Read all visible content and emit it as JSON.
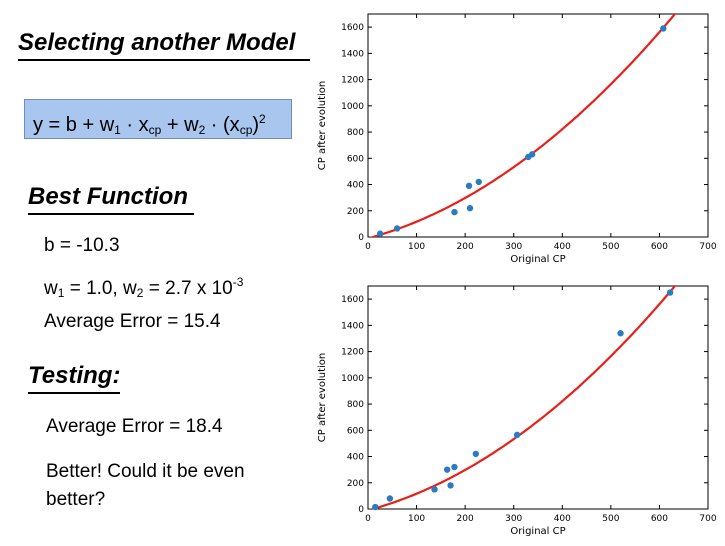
{
  "slide": {
    "title": "Selecting another Model",
    "formula": {
      "y": "y",
      "eq": " = b + w",
      "w1_sub": "1",
      "mid1": " · x",
      "cp1": "cp",
      "mid2": " + w",
      "w2_sub": "2",
      "mid3": " · (x",
      "cp2": "cp",
      "close": ")",
      "power": "2"
    },
    "best_heading": "Best Function",
    "b_line": "b = -10.3",
    "w_line": {
      "w1_prefix": "w",
      "w1_sub": "1",
      "w1_val": " = 1.0, w",
      "w2_sub": "2",
      "w2_val": " = 2.7 x 10",
      "exp": "-3"
    },
    "avg_error_train": "Average Error = 15.4",
    "testing_heading": "Testing:",
    "avg_error_test": "Average Error = 18.4",
    "better_text": "Better! Could it be even better?"
  },
  "colors": {
    "formula_box": "#a8c6ee",
    "point": "#2c7bc0",
    "curve": "#e8201a"
  },
  "chart_data": [
    {
      "type": "scatter",
      "xlabel": "Original CP",
      "ylabel": "CP after evolution",
      "xlim": [
        0,
        700
      ],
      "ylim": [
        0,
        1700
      ],
      "xticks": [
        0,
        100,
        200,
        300,
        400,
        500,
        600,
        700
      ],
      "yticks": [
        0,
        200,
        400,
        600,
        800,
        1000,
        1200,
        1400,
        1600
      ],
      "grid": false,
      "points": [
        [
          25,
          25
        ],
        [
          60,
          65
        ],
        [
          178,
          190
        ],
        [
          210,
          220
        ],
        [
          208,
          390
        ],
        [
          228,
          420
        ],
        [
          330,
          610
        ],
        [
          338,
          630
        ],
        [
          608,
          1590
        ]
      ],
      "model": {
        "b": -10.3,
        "w1": 1.0,
        "w2": 0.0027
      }
    },
    {
      "type": "scatter",
      "xlabel": "Original CP",
      "ylabel": "CP after evolution",
      "xlim": [
        0,
        700
      ],
      "ylim": [
        0,
        1700
      ],
      "xticks": [
        0,
        100,
        200,
        300,
        400,
        500,
        600,
        700
      ],
      "yticks": [
        0,
        200,
        400,
        600,
        800,
        1000,
        1200,
        1400,
        1600
      ],
      "grid": false,
      "points": [
        [
          15,
          15
        ],
        [
          45,
          80
        ],
        [
          137,
          150
        ],
        [
          163,
          300
        ],
        [
          170,
          180
        ],
        [
          178,
          320
        ],
        [
          222,
          420
        ],
        [
          307,
          565
        ],
        [
          520,
          1340
        ],
        [
          622,
          1650
        ]
      ],
      "model": {
        "b": -10.3,
        "w1": 1.0,
        "w2": 0.0027
      }
    }
  ]
}
